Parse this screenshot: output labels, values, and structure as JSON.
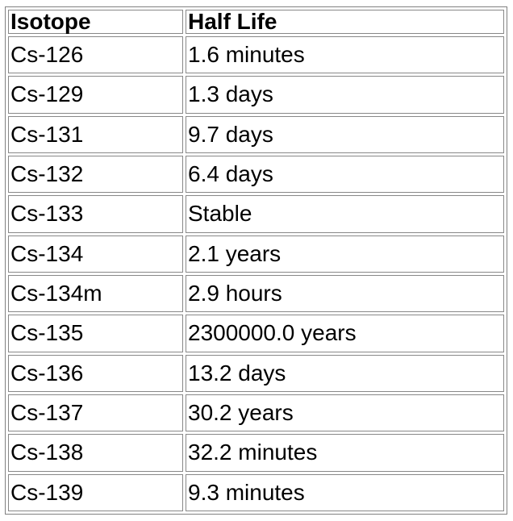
{
  "table": {
    "headers": [
      "Isotope",
      "Half Life"
    ],
    "rows": [
      [
        "Cs-126",
        "1.6 minutes"
      ],
      [
        "Cs-129",
        "1.3 days"
      ],
      [
        "Cs-131",
        "9.7 days"
      ],
      [
        "Cs-132",
        "6.4 days"
      ],
      [
        "Cs-133",
        "Stable"
      ],
      [
        "Cs-134",
        "2.1 years"
      ],
      [
        "Cs-134m",
        "2.9 hours"
      ],
      [
        "Cs-135",
        "2300000.0 years"
      ],
      [
        "Cs-136",
        "13.2 days"
      ],
      [
        "Cs-137",
        "30.2 years"
      ],
      [
        "Cs-138",
        "32.2 minutes"
      ],
      [
        "Cs-139",
        "9.3 minutes"
      ]
    ]
  }
}
